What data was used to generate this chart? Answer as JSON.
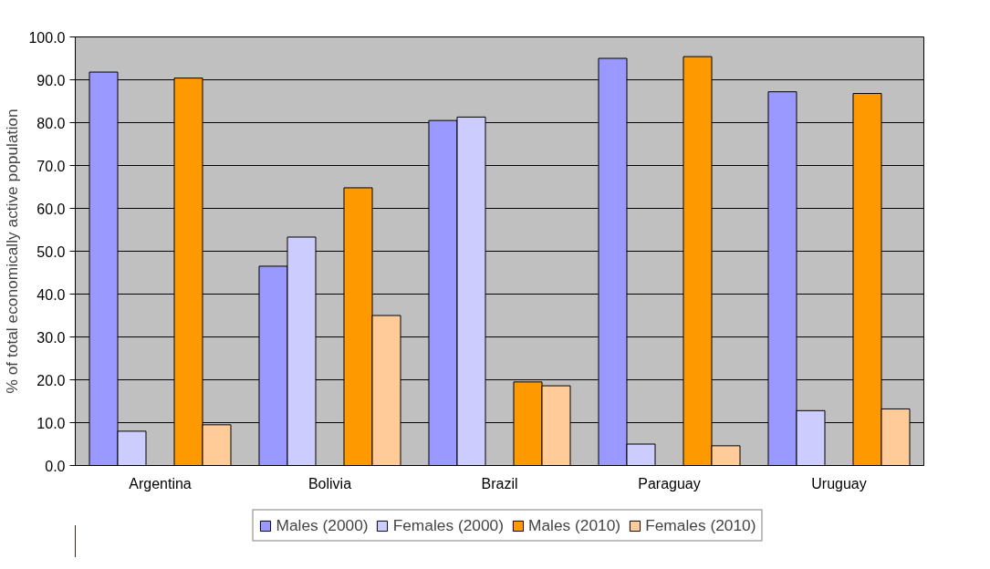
{
  "chart_data": {
    "type": "bar",
    "ylabel": "% of total economically active population",
    "categories": [
      "Argentina",
      "Bolivia",
      "Brazil",
      "Paraguay",
      "Uruguay"
    ],
    "series": [
      {
        "name": "Males (2000)",
        "color": "#9999ff",
        "values": [
          91.8,
          46.5,
          80.5,
          95.0,
          87.2
        ]
      },
      {
        "name": "Females (2000)",
        "color": "#ccccff",
        "values": [
          8.0,
          53.3,
          81.3,
          5.0,
          12.8
        ]
      },
      {
        "name": "Males (2010)",
        "color": "#ff9900",
        "values": [
          90.4,
          64.8,
          19.5,
          95.4,
          86.8
        ]
      },
      {
        "name": "Females (2010)",
        "color": "#ffcc99",
        "values": [
          9.5,
          35.0,
          18.6,
          4.6,
          13.2
        ]
      }
    ],
    "ylim": [
      0,
      100
    ],
    "yticks": [
      {
        "value": 0,
        "label": "0.0"
      },
      {
        "value": 10,
        "label": "10.0"
      },
      {
        "value": 20,
        "label": "20.0"
      },
      {
        "value": 30,
        "label": "30.0"
      },
      {
        "value": 40,
        "label": "40.0"
      },
      {
        "value": 50,
        "label": "50.0"
      },
      {
        "value": 60,
        "label": "60.0"
      },
      {
        "value": 70,
        "label": "70.0"
      },
      {
        "value": 80,
        "label": "80.0"
      },
      {
        "value": 90,
        "label": "90.0"
      },
      {
        "value": 100,
        "label": "100.0"
      }
    ],
    "grid": "y",
    "legend": "bottom"
  }
}
